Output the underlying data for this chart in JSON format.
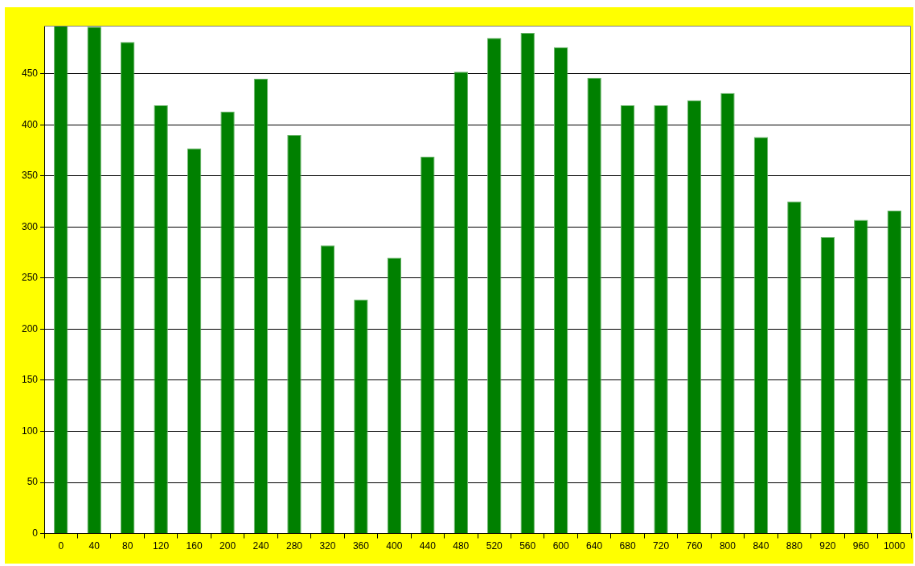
{
  "chart_data": {
    "type": "bar",
    "categories": [
      "0",
      "40",
      "80",
      "120",
      "160",
      "200",
      "240",
      "280",
      "320",
      "360",
      "400",
      "440",
      "480",
      "520",
      "560",
      "600",
      "640",
      "680",
      "720",
      "760",
      "800",
      "840",
      "880",
      "920",
      "960",
      "1000"
    ],
    "values": [
      497,
      496,
      481,
      419,
      377,
      413,
      445,
      390,
      282,
      229,
      270,
      369,
      452,
      485,
      490,
      476,
      446,
      419,
      419,
      424,
      431,
      388,
      325,
      290,
      307,
      316
    ],
    "color": "#008000",
    "ylim": [
      0,
      497
    ],
    "yticks": [
      0,
      50,
      100,
      150,
      200,
      250,
      300,
      350,
      400,
      450
    ],
    "grid": "y"
  }
}
